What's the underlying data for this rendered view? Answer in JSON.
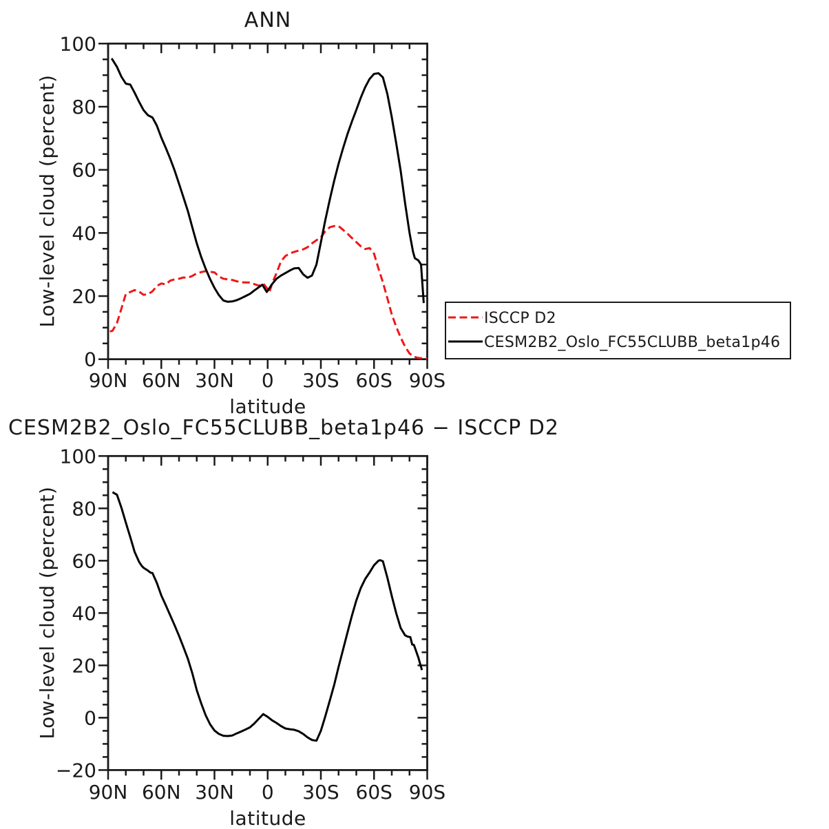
{
  "figure": {
    "background": "#ffffff",
    "axis_color": "#1a1a1a",
    "accent_red": "#f01616"
  },
  "legend": {
    "items": [
      {
        "label": "ISCCP D2",
        "color": "#f01616",
        "style": "dashed"
      },
      {
        "label": "CESM2B2_Oslo_FC55CLUBB_beta1p46",
        "color": "#000000",
        "style": "solid"
      }
    ]
  },
  "chart_data": [
    {
      "type": "line",
      "title": "ANN",
      "xlabel": "latitude",
      "ylabel": "Low-level cloud (percent)",
      "x_tick_labels": [
        "90N",
        "60N",
        "30N",
        "0",
        "30S",
        "60S",
        "90S"
      ],
      "y_tick_labels": [
        "100",
        "80",
        "60",
        "40",
        "20",
        "0"
      ],
      "xlim_deg": [
        90,
        -90
      ],
      "ylim": [
        0,
        100
      ],
      "x_major_step_deg": 30,
      "x_minor_step_deg": 10,
      "y_major_step": 20,
      "y_minor_step": 5,
      "grid": false,
      "legend_position": "outside-right",
      "series": [
        {
          "name": "ISCCP D2",
          "color": "#f01616",
          "style": "dashed",
          "lat": [
            89,
            87.5,
            85,
            82.5,
            80,
            77.5,
            75,
            72.5,
            70,
            67.5,
            65,
            62.5,
            60,
            57.5,
            55,
            52.5,
            50,
            47.5,
            45,
            42.5,
            40,
            37.5,
            35,
            32.5,
            30,
            27.5,
            25,
            22.5,
            20,
            17.5,
            15,
            12.5,
            10,
            7.5,
            5,
            2.5,
            0,
            -1,
            -2.5,
            -5,
            -7.5,
            -10,
            -12.5,
            -15,
            -17.5,
            -20,
            -22.5,
            -25,
            -27.5,
            -30,
            -32.5,
            -35,
            -37.5,
            -40,
            -42.5,
            -45,
            -47.5,
            -50,
            -52.5,
            -55,
            -57.5,
            -60,
            -62.5,
            -65,
            -67.5,
            -70,
            -72.5,
            -75,
            -77.5,
            -80,
            -82.5,
            -85,
            -87.5,
            -90
          ],
          "values": [
            8.8,
            9.0,
            11.5,
            16,
            20.7,
            21.3,
            21.9,
            21.4,
            20.4,
            20.6,
            21.5,
            23.2,
            24,
            23.7,
            24.9,
            25.3,
            25.5,
            25.9,
            25.8,
            26.4,
            27.2,
            27.6,
            27.9,
            27.7,
            27.5,
            26.2,
            25.5,
            25.3,
            25.1,
            24.7,
            24.4,
            24.3,
            24.3,
            23.8,
            23.3,
            24,
            22.2,
            21.2,
            24,
            27.3,
            31,
            32.7,
            33.5,
            34,
            34.4,
            34.8,
            35.5,
            36.7,
            37.7,
            38.6,
            40.5,
            41.8,
            42.2,
            42.2,
            41,
            39.8,
            38.4,
            37.1,
            35.8,
            34.9,
            35.2,
            33.4,
            28.7,
            24.4,
            19.3,
            14.2,
            10.3,
            6.9,
            4,
            1.8,
            0.8,
            0.4,
            0.3,
            0.2
          ]
        },
        {
          "name": "CESM2B2_Oslo_FC55CLUBB_beta1p46",
          "color": "#000000",
          "style": "solid",
          "lat": [
            88,
            85,
            82.5,
            80,
            77.5,
            75,
            72.5,
            70,
            67.5,
            65,
            62.5,
            60,
            57.5,
            55,
            52.5,
            50,
            47.5,
            45,
            42.5,
            40,
            37.5,
            35,
            32.5,
            30,
            27.5,
            25,
            22.5,
            20,
            17.5,
            15,
            12.5,
            10,
            7.5,
            5,
            3,
            0.5,
            -2.5,
            -5,
            -7.5,
            -10,
            -12.5,
            -15,
            -17.5,
            -20,
            -22.5,
            -25,
            -27.5,
            -30,
            -32.5,
            -35,
            -37.5,
            -40,
            -42.5,
            -45,
            -47.5,
            -50,
            -52.5,
            -55,
            -57.5,
            -60,
            -62.5,
            -65,
            -67.5,
            -70,
            -72.5,
            -75,
            -77.5,
            -80,
            -82,
            -83,
            -85,
            -86.5,
            -88
          ],
          "values": [
            95.3,
            92.6,
            89.5,
            87.3,
            87,
            84.4,
            81.5,
            78.9,
            77.3,
            76.6,
            74,
            70.2,
            67,
            63.6,
            59.8,
            55.6,
            51.3,
            46.9,
            41.8,
            36.7,
            32.4,
            28.7,
            25.4,
            22.6,
            20.3,
            18.6,
            18.2,
            18.3,
            18.7,
            19.3,
            20,
            20.7,
            21.8,
            22.8,
            23.6,
            21.3,
            23.8,
            25.5,
            26.5,
            27.3,
            28.1,
            28.8,
            28.9,
            26.9,
            25.8,
            26.5,
            30,
            37,
            44,
            50.5,
            56.5,
            62,
            66.8,
            71.3,
            75.3,
            79,
            82.8,
            86.2,
            88.8,
            90.4,
            90.6,
            89.3,
            84,
            76.7,
            68.5,
            59.7,
            49.5,
            40,
            34,
            32,
            31.3,
            30,
            17.8
          ]
        }
      ]
    },
    {
      "type": "line",
      "title": "CESM2B2_Oslo_FC55CLUBB_beta1p46 − ISCCP D2",
      "xlabel": "latitude",
      "ylabel": "Low-level cloud (percent)",
      "x_tick_labels": [
        "90N",
        "60N",
        "30N",
        "0",
        "30S",
        "60S",
        "90S"
      ],
      "y_tick_labels": [
        "100",
        "80",
        "60",
        "40",
        "20",
        "0",
        "−20"
      ],
      "xlim_deg": [
        90,
        -90
      ],
      "ylim": [
        -20,
        100
      ],
      "x_major_step_deg": 30,
      "x_minor_step_deg": 10,
      "y_major_step": 20,
      "y_minor_step": 5,
      "grid": false,
      "series": [
        {
          "name": "CESM2B2_Oslo_FC55CLUBB_beta1p46 − ISCCP D2",
          "color": "#000000",
          "style": "solid",
          "lat": [
            87.5,
            85,
            82.5,
            80,
            77.5,
            75,
            72.5,
            71,
            70,
            67.5,
            66,
            65,
            62.5,
            60,
            57.5,
            55,
            52.5,
            50,
            47.5,
            45,
            42.5,
            40,
            37.5,
            35,
            32.5,
            30,
            27.5,
            25,
            22.5,
            20,
            17.5,
            15,
            12.5,
            10,
            7.5,
            5,
            2.5,
            0,
            -2.5,
            -5,
            -7.5,
            -10,
            -12.5,
            -15,
            -17.5,
            -20,
            -22.5,
            -25,
            -27.5,
            -30,
            -32.5,
            -35,
            -37.5,
            -40,
            -42.5,
            -45,
            -47.5,
            -50,
            -52.5,
            -55,
            -57.5,
            -60,
            -62.5,
            -63.5,
            -65,
            -67.5,
            -70,
            -72.5,
            -75,
            -77.5,
            -79,
            -80.5,
            -81.5,
            -82.5,
            -85,
            -87
          ],
          "values": [
            86.2,
            85.2,
            80.3,
            74.5,
            69,
            63.3,
            59.5,
            58,
            57.3,
            56.2,
            55.4,
            55.3,
            51.5,
            46.7,
            43,
            39.2,
            35.3,
            31.3,
            27,
            22.5,
            17,
            10.5,
            5.5,
            1,
            -2.5,
            -4.9,
            -6.2,
            -6.9,
            -7,
            -6.8,
            -6,
            -5.3,
            -4.5,
            -3.7,
            -2.2,
            -0.4,
            1.4,
            0.3,
            -1,
            -2,
            -3.2,
            -4.1,
            -4.4,
            -4.6,
            -5.2,
            -6.2,
            -7.5,
            -8.5,
            -8.8,
            -5,
            0.5,
            6.5,
            12.5,
            19.5,
            26,
            32.5,
            39,
            44.8,
            49.5,
            53,
            55.5,
            58.3,
            60,
            60.2,
            59.8,
            53.5,
            46.5,
            40,
            34.3,
            31.5,
            31,
            30.8,
            28,
            27.8,
            23,
            18.2
          ]
        }
      ]
    }
  ]
}
